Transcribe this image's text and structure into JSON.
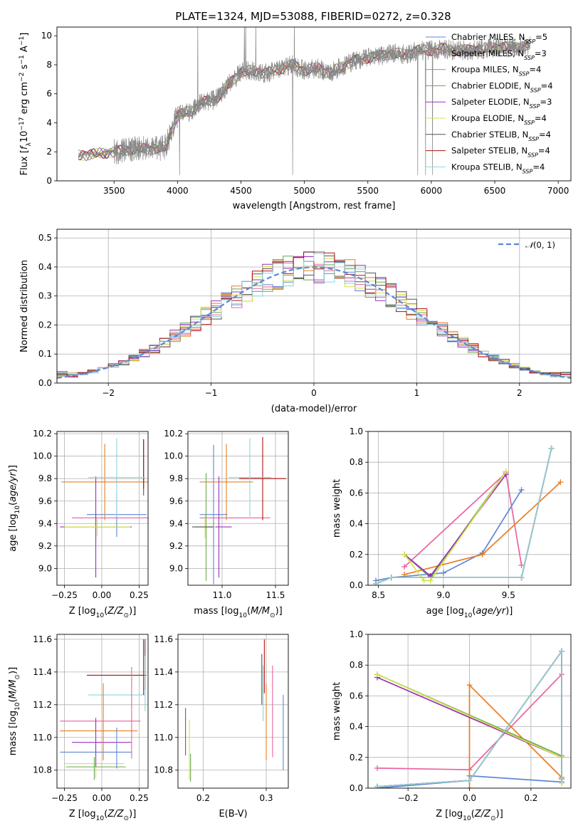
{
  "title": "PLATE=1324, MJD=53088, FIBERID=0272, z=0.328",
  "colors": {
    "Chabrier MILES": "#5f86d6",
    "Salpeter MILES": "#e8639f",
    "Kroupa MILES": "#e67e22",
    "Chabrier ELODIE": "#6aa84f",
    "Salpeter ELODIE": "#9b30b8",
    "Kroupa ELODIE": "#d4e34a",
    "Chabrier STELIB": "#555555",
    "Salpeter STELIB": "#b01010",
    "Kroupa STELIB": "#8fd3dc",
    "spectrum": "#888888",
    "normal": "#5f86d6"
  },
  "legend_series": [
    {
      "name": "Chabrier MILES",
      "n": "5"
    },
    {
      "name": "Salpeter MILES",
      "n": "3"
    },
    {
      "name": "Kroupa MILES",
      "n": "4"
    },
    {
      "name": "Chabrier ELODIE",
      "n": "4"
    },
    {
      "name": "Salpeter ELODIE",
      "n": "3"
    },
    {
      "name": "Kroupa ELODIE",
      "n": "4"
    },
    {
      "name": "Chabrier STELIB",
      "n": "4"
    },
    {
      "name": "Salpeter STELIB",
      "n": "4"
    },
    {
      "name": "Kroupa STELIB",
      "n": "4"
    }
  ],
  "legend_nssp_label": "N",
  "legend_nssp_sub": "SSP",
  "chart_data": [
    {
      "id": "spectrum",
      "type": "line",
      "xlabel": "wavelength [Angstrom, rest frame]",
      "ylabel": "Flux [f_λ 10^-17 erg cm^-2 s^-1 A^-1]",
      "xlim": [
        3050,
        7100
      ],
      "ylim": [
        0,
        10.6
      ],
      "xticks": [
        3500,
        4000,
        4500,
        5000,
        5500,
        6000,
        6500,
        7000
      ],
      "yticks": [
        0,
        2,
        4,
        6,
        8,
        10
      ],
      "observed_range": [
        3220,
        6780
      ],
      "continuum": [
        [
          3220,
          1.75
        ],
        [
          3400,
          1.9
        ],
        [
          3500,
          2.0
        ],
        [
          3650,
          2.2
        ],
        [
          3800,
          2.2
        ],
        [
          3900,
          2.3
        ],
        [
          4000,
          4.5
        ],
        [
          4100,
          4.8
        ],
        [
          4200,
          5.4
        ],
        [
          4300,
          5.6
        ],
        [
          4400,
          6.6
        ],
        [
          4500,
          7.5
        ],
        [
          4600,
          7.6
        ],
        [
          4700,
          7.4
        ],
        [
          4800,
          7.7
        ],
        [
          4900,
          8.0
        ],
        [
          5000,
          7.6
        ],
        [
          5100,
          7.8
        ],
        [
          5200,
          7.4
        ],
        [
          5300,
          7.9
        ],
        [
          5400,
          8.3
        ],
        [
          5500,
          8.5
        ],
        [
          5600,
          8.6
        ],
        [
          5700,
          8.8
        ],
        [
          5800,
          8.7
        ],
        [
          5900,
          9.0
        ],
        [
          6000,
          9.0
        ],
        [
          6100,
          9.1
        ],
        [
          6200,
          9.0
        ],
        [
          6300,
          9.0
        ],
        [
          6400,
          9.1
        ],
        [
          6500,
          9.2
        ],
        [
          6600,
          9.2
        ],
        [
          6700,
          9.3
        ],
        [
          6780,
          9.3
        ]
      ]
    },
    {
      "id": "residuals",
      "type": "histogram",
      "xlabel": "(data-model)/error",
      "ylabel": "Normed distribution",
      "xlim": [
        -2.5,
        2.5
      ],
      "ylim": [
        0,
        0.53
      ],
      "xticks": [
        -2,
        -1,
        0,
        1,
        2
      ],
      "yticks": [
        0.0,
        0.1,
        0.2,
        0.3,
        0.4,
        0.5
      ],
      "bin_edges_range": [
        -2.5,
        2.5
      ],
      "bins": 50,
      "reference_series": "N(0,1)"
    },
    {
      "id": "age_vs_Z",
      "type": "errorbar",
      "xlabel": "Z [log10(Z/Z☉)]",
      "ylabel": "age  [log10(age/yr)]",
      "xlim": [
        -0.3,
        0.31
      ],
      "ylim": [
        8.85,
        10.22
      ],
      "xticks": [
        -0.25,
        0.0,
        0.25
      ],
      "yticks": [
        9.0,
        9.2,
        9.4,
        9.6,
        9.8,
        10.0,
        10.2
      ],
      "points": [
        {
          "s": "Chabrier MILES",
          "x": 0.1,
          "xe": 0.2,
          "y": 9.48,
          "ye": 0.2
        },
        {
          "s": "Salpeter MILES",
          "x": 0.09,
          "xe": 0.29,
          "y": 9.45,
          "ye": 0.0
        },
        {
          "s": "Kroupa MILES",
          "x": 0.02,
          "xe": 0.29,
          "y": 9.77,
          "ye": 0.34
        },
        {
          "s": "Chabrier ELODIE",
          "x": -0.04,
          "xe": 0.2,
          "y": 9.37,
          "ye": 0.12
        },
        {
          "s": "Salpeter ELODIE",
          "x": -0.04,
          "xe": 0.24,
          "y": 9.37,
          "ye": 0.45
        },
        {
          "s": "Kroupa ELODIE",
          "x": -0.03,
          "xe": 0.22,
          "y": 9.37,
          "ye": 0.08
        },
        {
          "s": "Chabrier STELIB",
          "x": 0.28,
          "xe": 0.0,
          "y": 9.9,
          "ye": 0.25
        },
        {
          "s": "Salpeter STELIB",
          "x": 0.28,
          "xe": 0.0,
          "y": 9.93,
          "ye": 0.22
        },
        {
          "s": "Kroupa STELIB",
          "x": 0.1,
          "xe": 0.19,
          "y": 9.81,
          "ye": 0.35
        }
      ]
    },
    {
      "id": "age_vs_mass",
      "type": "errorbar",
      "xlabel": "mass [log10(M/M☉)]",
      "ylabel": "",
      "xlim": [
        10.68,
        11.62
      ],
      "ylim": [
        8.85,
        10.22
      ],
      "xticks": [
        11.0,
        11.5
      ],
      "yticks": [
        9.0,
        9.2,
        9.4,
        9.6,
        9.8,
        10.0,
        10.2
      ],
      "points": [
        {
          "s": "Chabrier MILES",
          "x": 10.92,
          "xe": 0.13,
          "y": 9.48,
          "ye": 0.62
        },
        {
          "s": "Salpeter MILES",
          "x": 11.12,
          "xe": 0.33,
          "y": 9.45,
          "ye": 0.0
        },
        {
          "s": "Kroupa MILES",
          "x": 11.04,
          "xe": 0.25,
          "y": 9.77,
          "ye": 0.34
        },
        {
          "s": "Chabrier ELODIE",
          "x": 10.85,
          "xe": 0.09,
          "y": 9.37,
          "ye": 0.48
        },
        {
          "s": "Salpeter ELODIE",
          "x": 10.97,
          "xe": 0.12,
          "y": 9.37,
          "ye": 0.45
        },
        {
          "s": "Kroupa ELODIE",
          "x": 10.84,
          "xe": 0.1,
          "y": 9.37,
          "ye": 0.1
        },
        {
          "s": "Chabrier STELIB",
          "x": 10.82,
          "xe": 0.1,
          "y": 9.37,
          "ye": 0.0
        },
        {
          "s": "Salpeter STELIB",
          "x": 11.38,
          "xe": 0.22,
          "y": 9.8,
          "ye": 0.37
        },
        {
          "s": "Kroupa STELIB",
          "x": 11.26,
          "xe": 0.2,
          "y": 9.81,
          "ye": 0.35
        }
      ]
    },
    {
      "id": "weight_vs_age",
      "type": "line",
      "xlabel": "age  [log10(age/yr)]",
      "ylabel": "mass weight",
      "xlim": [
        8.42,
        9.98
      ],
      "ylim": [
        0,
        1.0
      ],
      "xticks": [
        8.5,
        9.0,
        9.5
      ],
      "yticks": [
        0.0,
        0.2,
        0.4,
        0.6,
        0.8,
        1.0
      ],
      "series": [
        {
          "s": "Chabrier MILES",
          "x": [
            8.48,
            8.6,
            9.0,
            9.3,
            9.6
          ],
          "y": [
            0.03,
            0.05,
            0.08,
            0.21,
            0.62
          ]
        },
        {
          "s": "Salpeter MILES",
          "x": [
            8.7,
            9.48,
            9.6
          ],
          "y": [
            0.12,
            0.73,
            0.13
          ]
        },
        {
          "s": "Kroupa MILES",
          "x": [
            8.7,
            9.3,
            9.9
          ],
          "y": [
            0.07,
            0.2,
            0.67
          ]
        },
        {
          "s": "Chabrier ELODIE",
          "x": [
            8.7,
            8.9,
            9.48
          ],
          "y": [
            0.2,
            0.05,
            0.74
          ]
        },
        {
          "s": "Salpeter ELODIE",
          "x": [
            8.7,
            8.9,
            9.48
          ],
          "y": [
            0.2,
            0.06,
            0.72
          ]
        },
        {
          "s": "Kroupa ELODIE",
          "x": [
            8.7,
            8.85,
            8.9,
            9.48
          ],
          "y": [
            0.2,
            0.03,
            0.03,
            0.74
          ]
        },
        {
          "s": "Chabrier STELIB",
          "x": [
            8.48,
            8.6,
            9.6,
            9.83
          ],
          "y": [
            0.01,
            0.05,
            0.05,
            0.89
          ]
        },
        {
          "s": "Salpeter STELIB",
          "x": [
            8.48,
            8.6,
            9.6,
            9.83
          ],
          "y": [
            0.01,
            0.05,
            0.05,
            0.89
          ]
        },
        {
          "s": "Kroupa STELIB",
          "x": [
            8.48,
            8.6,
            9.6,
            9.83
          ],
          "y": [
            0.01,
            0.05,
            0.05,
            0.89
          ]
        }
      ]
    },
    {
      "id": "mass_vs_Z",
      "type": "errorbar",
      "xlabel": "Z [log10(Z/Z☉)]",
      "ylabel": "mass [log10(M/M☉)]",
      "xlim": [
        -0.3,
        0.31
      ],
      "ylim": [
        10.69,
        11.63
      ],
      "xticks": [
        -0.25,
        0.0,
        0.25
      ],
      "yticks": [
        10.8,
        11.0,
        11.2,
        11.4,
        11.6
      ],
      "points": [
        {
          "s": "Chabrier MILES",
          "x": -0.04,
          "xe": 0.24,
          "y": 10.91,
          "ye": 0.0
        },
        {
          "s": "Salpeter MILES",
          "x": -0.01,
          "xe": 0.27,
          "y": 11.1,
          "ye": 0.0
        },
        {
          "s": "Kroupa MILES",
          "x": -0.02,
          "xe": 0.26,
          "y": 11.04,
          "ye": 0.0
        },
        {
          "s": "Chabrier ELODIE",
          "x": -0.04,
          "xe": 0.2,
          "y": 10.82,
          "ye": 0.0
        },
        {
          "s": "Salpeter ELODIE",
          "x": 0.0,
          "xe": 0.2,
          "y": 10.97,
          "ye": 0.0
        },
        {
          "s": "Kroupa ELODIE",
          "x": -0.05,
          "xe": 0.2,
          "y": 10.84,
          "ye": 0.0
        },
        {
          "s": "Chabrier STELIB",
          "x": 0.28,
          "xe": 0.0,
          "y": 11.5,
          "ye": 0.0
        },
        {
          "s": "Salpeter STELIB",
          "x": 0.1,
          "xe": 0.2,
          "y": 11.38,
          "ye": 0.0
        },
        {
          "s": "Kroupa STELIB",
          "x": 0.1,
          "xe": 0.19,
          "y": 11.26,
          "ye": 0.0
        }
      ],
      "vbars": [
        {
          "s": "Chabrier MILES",
          "x": 0.1,
          "y0": 10.81,
          "y1": 11.06
        },
        {
          "s": "Kroupa MILES",
          "x": 0.01,
          "y0": 10.86,
          "y1": 11.33
        },
        {
          "s": "Salpeter MILES",
          "x": 0.2,
          "y0": 10.87,
          "y1": 11.43
        },
        {
          "s": "Kroupa ELODIE",
          "x": -0.04,
          "y0": 10.75,
          "y1": 10.92
        },
        {
          "s": "Salpeter ELODIE",
          "x": -0.04,
          "y0": 10.82,
          "y1": 11.12
        },
        {
          "s": "Chabrier ELODIE",
          "x": -0.05,
          "y0": 10.74,
          "y1": 10.88
        },
        {
          "s": "Chabrier STELIB",
          "x": 0.29,
          "y0": 11.29,
          "y1": 11.6
        },
        {
          "s": "Salpeter STELIB",
          "x": 0.28,
          "y0": 11.26,
          "y1": 11.6
        },
        {
          "s": "Kroupa STELIB",
          "x": 0.29,
          "y0": 11.16,
          "y1": 11.5
        }
      ]
    },
    {
      "id": "mass_vs_EBV",
      "type": "errorbar",
      "xlabel": "E(B-V)",
      "ylabel": "",
      "xlim": [
        0.16,
        0.335
      ],
      "ylim": [
        10.69,
        11.63
      ],
      "xticks": [
        0.2,
        0.3
      ],
      "yticks": [
        10.8,
        11.0,
        11.2,
        11.4,
        11.6
      ],
      "vbars": [
        {
          "s": "Salpeter ELODIE",
          "x": 0.172,
          "y0": 10.89,
          "y1": 11.18
        },
        {
          "s": "Kroupa ELODIE",
          "x": 0.178,
          "y0": 10.74,
          "y1": 11.11
        },
        {
          "s": "Chabrier ELODIE",
          "x": 0.18,
          "y0": 10.73,
          "y1": 10.9
        },
        {
          "s": "Chabrier STELIB",
          "x": 0.293,
          "y0": 11.2,
          "y1": 11.51
        },
        {
          "s": "Salpeter STELIB",
          "x": 0.297,
          "y0": 11.27,
          "y1": 11.6
        },
        {
          "s": "Kroupa STELIB",
          "x": 0.295,
          "y0": 11.1,
          "y1": 11.44
        },
        {
          "s": "Kroupa MILES",
          "x": 0.3,
          "y0": 10.86,
          "y1": 11.33
        },
        {
          "s": "Salpeter MILES",
          "x": 0.31,
          "y0": 10.88,
          "y1": 11.44
        },
        {
          "s": "Chabrier MILES",
          "x": 0.327,
          "y0": 10.8,
          "y1": 11.26
        }
      ]
    },
    {
      "id": "weight_vs_Z",
      "type": "line",
      "xlabel": "Z [log10(Z/Z☉)]",
      "ylabel": "mass weight",
      "xlim": [
        -0.33,
        0.33
      ],
      "ylim": [
        0,
        1.0
      ],
      "xticks": [
        -0.2,
        0.0,
        0.2
      ],
      "yticks": [
        0.0,
        0.2,
        0.4,
        0.6,
        0.8,
        1.0
      ],
      "series": [
        {
          "s": "Chabrier MILES",
          "x": [
            -0.3,
            0.0,
            0.0,
            0.3
          ],
          "y": [
            0.0,
            0.05,
            0.08,
            0.04
          ]
        },
        {
          "s": "Salpeter MILES",
          "x": [
            -0.3,
            0.0,
            0.3
          ],
          "y": [
            0.13,
            0.12,
            0.74
          ]
        },
        {
          "s": "Kroupa MILES",
          "x": [
            0.0,
            0.0,
            0.3
          ],
          "y": [
            0.0,
            0.67,
            0.07
          ]
        },
        {
          "s": "Chabrier ELODIE",
          "x": [
            -0.3,
            0.3
          ],
          "y": [
            0.74,
            0.21
          ]
        },
        {
          "s": "Salpeter ELODIE",
          "x": [
            -0.3,
            0.3
          ],
          "y": [
            0.72,
            0.2
          ]
        },
        {
          "s": "Kroupa ELODIE",
          "x": [
            -0.3,
            0.3,
            0.3
          ],
          "y": [
            0.74,
            0.2,
            0.03
          ]
        },
        {
          "s": "Chabrier STELIB",
          "x": [
            -0.3,
            0.0,
            0.3,
            0.3
          ],
          "y": [
            0.01,
            0.05,
            0.89,
            0.06
          ]
        },
        {
          "s": "Salpeter STELIB",
          "x": [
            -0.3,
            0.0,
            0.3,
            0.3
          ],
          "y": [
            0.01,
            0.05,
            0.89,
            0.06
          ]
        },
        {
          "s": "Kroupa STELIB",
          "x": [
            -0.3,
            0.0,
            0.3,
            0.3
          ],
          "y": [
            0.01,
            0.05,
            0.89,
            0.06
          ]
        }
      ]
    }
  ]
}
